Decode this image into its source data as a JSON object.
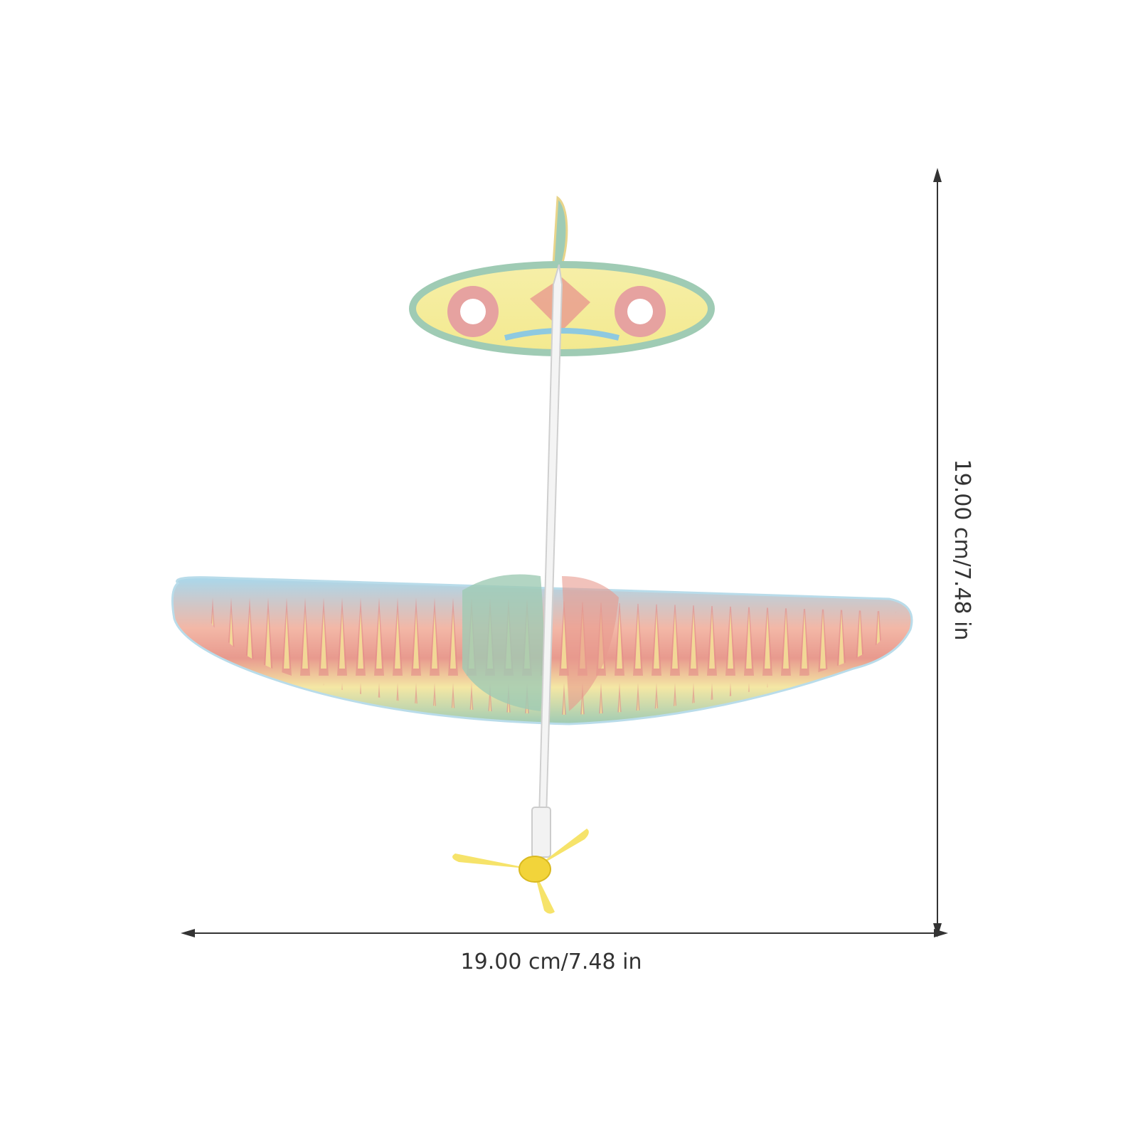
{
  "dimensions": {
    "width": "19.00 cm/7.48 in",
    "height": "19.00 cm/7.48 in"
  }
}
